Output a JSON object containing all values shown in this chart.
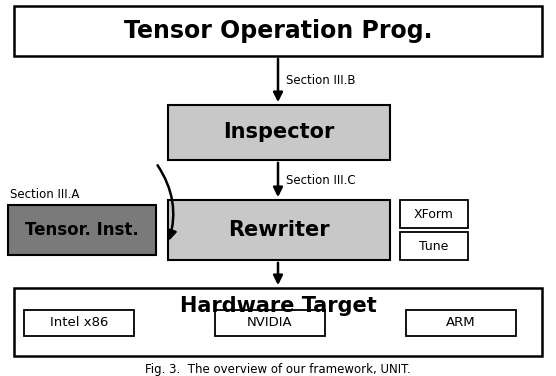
{
  "title": "Tensor Operation Prog.",
  "inspector_label": "Inspector",
  "rewriter_label": "Rewriter",
  "tensor_inst_label": "Tensor. Inst.",
  "hardware_target_label": "Hardware Target",
  "section_b_label": "Section III.B",
  "section_a_label": "Section III.A",
  "section_c_label": "Section III.C",
  "xform_label": "XForm",
  "tune_label": "Tune",
  "intel_label": "Intel x86",
  "nvidia_label": "NVIDIA",
  "arm_label": "ARM",
  "caption": "Fig. 3.  The overview of our framework, UNIT.",
  "bg_color": "#ffffff",
  "box_light_gray": "#c8c8c8",
  "box_dark_gray": "#7a7a7a",
  "box_white": "#ffffff",
  "text_color": "#000000"
}
